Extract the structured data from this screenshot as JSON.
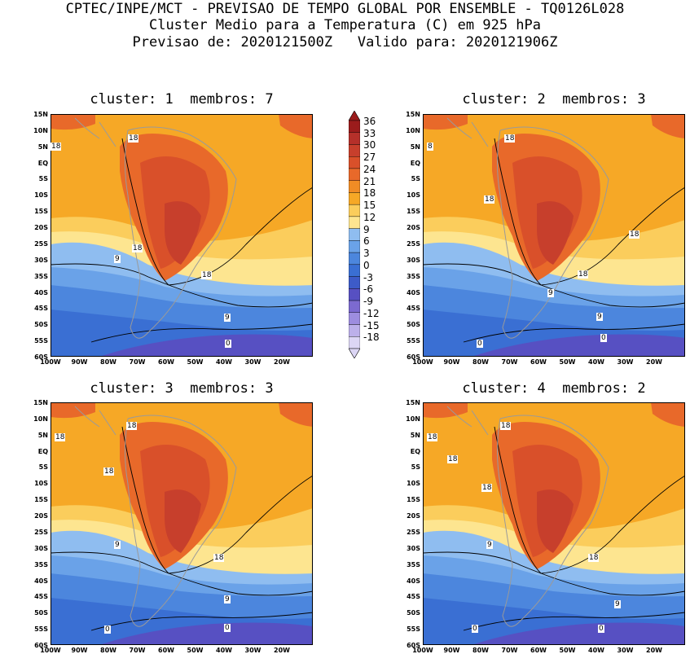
{
  "header": {
    "line1": "CPTEC/INPE/MCT - PREVISAO DE TEMPO GLOBAL POR ENSEMBLE - TQ0126L028",
    "line2": "Cluster Medio para a Temperatura (C) em 925 hPa",
    "line3": "Previsao de: 2020121500Z   Valido para: 2020121906Z"
  },
  "panels": [
    {
      "title": "cluster: 1  membros: 7"
    },
    {
      "title": "cluster: 2  membros: 3"
    },
    {
      "title": "cluster: 3  membros: 3"
    },
    {
      "title": "cluster: 4  membros: 2"
    }
  ],
  "lat_labels": [
    "15N",
    "10N",
    "5N",
    "EQ",
    "5S",
    "10S",
    "15S",
    "20S",
    "25S",
    "30S",
    "35S",
    "40S",
    "45S",
    "50S",
    "55S",
    "60S"
  ],
  "lon_labels": [
    "100W",
    "90W",
    "80W",
    "70W",
    "60W",
    "50W",
    "40W",
    "30W",
    "20W"
  ],
  "colorbar": {
    "labels": [
      "36",
      "33",
      "30",
      "27",
      "24",
      "21",
      "18",
      "15",
      "12",
      "9",
      "6",
      "3",
      "0",
      "-3",
      "-6",
      "-9",
      "-12",
      "-15",
      "-18"
    ],
    "colors": [
      "#9b1c1c",
      "#b5302a",
      "#c73f2c",
      "#d9502a",
      "#e8692a",
      "#f08c25",
      "#f6a826",
      "#fbcd5c",
      "#fde590",
      "#8fbdf0",
      "#6aa2e8",
      "#4c86dd",
      "#3a6fd3",
      "#3d5bc8",
      "#5750c2",
      "#7c6ad0",
      "#9d8ddf",
      "#bcb0ea",
      "#dcd6f5"
    ]
  },
  "contour_labels": {
    "p1": [
      "18",
      "18",
      "18",
      "18",
      "9",
      "9",
      "0"
    ],
    "p2": [
      "8",
      "18",
      "18",
      "18",
      "18",
      "9",
      "9",
      "0",
      "0"
    ],
    "p3": [
      "18",
      "18",
      "18",
      "18",
      "9",
      "9",
      "0",
      "0"
    ],
    "p4": [
      "18",
      "18",
      "18",
      "18",
      "9",
      "18",
      "9",
      "0",
      "0"
    ]
  },
  "colors": {
    "ocean_warm": "#f6a826",
    "hot": "#e8692a",
    "hotter": "#d9502a",
    "hottest": "#c73f2c",
    "yellow": "#fde590",
    "light_yellow": "#fbcd5c",
    "blue1": "#8fbdf0",
    "blue2": "#6aa2e8",
    "blue3": "#4c86dd",
    "blue4": "#3a6fd3",
    "purple": "#5750c2"
  }
}
